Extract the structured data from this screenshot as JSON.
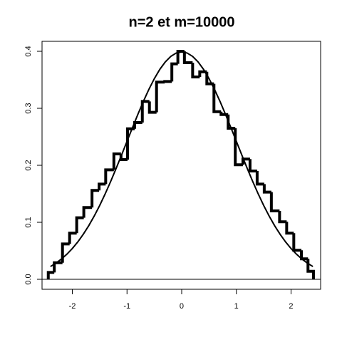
{
  "chart_data": {
    "type": "histogram",
    "title": "n=2 et m=10000",
    "bins": [
      -2.44,
      -2.33,
      -2.18,
      -2.05,
      -1.92,
      -1.79,
      -1.64,
      -1.51,
      -1.39,
      -1.24,
      -1.11,
      -0.99,
      -0.86,
      -0.72,
      -0.59,
      -0.46,
      -0.31,
      -0.18,
      -0.07,
      0.05,
      0.2,
      0.33,
      0.46,
      0.59,
      0.72,
      0.85,
      0.98,
      1.12,
      1.25,
      1.38,
      1.51,
      1.64,
      1.79,
      1.92,
      2.05,
      2.19,
      2.31,
      2.41
    ],
    "values": [
      0.012,
      0.029,
      0.062,
      0.081,
      0.108,
      0.126,
      0.156,
      0.167,
      0.192,
      0.22,
      0.21,
      0.264,
      0.275,
      0.312,
      0.293,
      0.346,
      0.347,
      0.378,
      0.4,
      0.38,
      0.355,
      0.364,
      0.343,
      0.294,
      0.289,
      0.265,
      0.201,
      0.211,
      0.19,
      0.167,
      0.153,
      0.12,
      0.101,
      0.081,
      0.051,
      0.036,
      0.014
    ],
    "color": "#000000",
    "curve": {
      "x": [
        -2.4,
        -2.3,
        -2.2,
        -2.1,
        -2.0,
        -1.9,
        -1.8,
        -1.7,
        -1.6,
        -1.5,
        -1.4,
        -1.3,
        -1.2,
        -1.1,
        -1.0,
        -0.9,
        -0.8,
        -0.7,
        -0.6,
        -0.5,
        -0.4,
        -0.3,
        -0.2,
        -0.1,
        0,
        0.1,
        0.2,
        0.3,
        0.4,
        0.5,
        0.6,
        0.7,
        0.8,
        0.9,
        1.0,
        1.1,
        1.2,
        1.3,
        1.4,
        1.5,
        1.6,
        1.7,
        1.8,
        1.9,
        2.0,
        2.1,
        2.2,
        2.3,
        2.4
      ],
      "y": [
        0.0224,
        0.0283,
        0.0355,
        0.044,
        0.054,
        0.0656,
        0.079,
        0.094,
        0.1109,
        0.1295,
        0.1497,
        0.1714,
        0.1942,
        0.2179,
        0.242,
        0.2661,
        0.2897,
        0.3123,
        0.3332,
        0.3521,
        0.3683,
        0.3814,
        0.391,
        0.397,
        0.3989,
        0.397,
        0.391,
        0.3814,
        0.3683,
        0.3521,
        0.3332,
        0.3123,
        0.2897,
        0.2661,
        0.242,
        0.2179,
        0.1942,
        0.1714,
        0.1497,
        0.1295,
        0.1109,
        0.094,
        0.079,
        0.0656,
        0.054,
        0.044,
        0.0355,
        0.0283,
        0.0224
      ]
    },
    "hline": 0,
    "xlim": [
      -2.554,
      2.541
    ],
    "ylim": [
      -0.0175,
      0.4175
    ],
    "xticks": [
      -2,
      -1,
      0,
      1,
      2
    ],
    "yticks": [
      {
        "value": 0,
        "label": "0.0"
      },
      {
        "value": 0.1,
        "label": "0.1"
      },
      {
        "value": 0.2,
        "label": "0.2"
      },
      {
        "value": 0.3,
        "label": "0.3"
      },
      {
        "value": 0.4,
        "label": "0.4"
      }
    ]
  }
}
